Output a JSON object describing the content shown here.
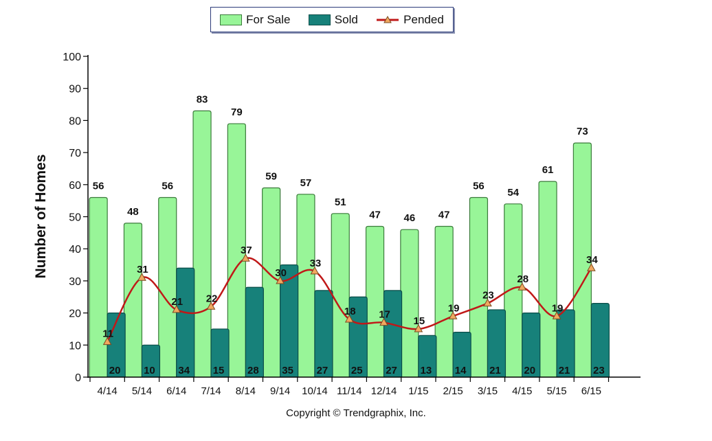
{
  "legend": {
    "for_sale": "For Sale",
    "sold": "Sold",
    "pended": "Pended"
  },
  "colors": {
    "for_sale_fill": "#98f598",
    "for_sale_stroke": "#3a7a3a",
    "sold_fill": "#17817a",
    "sold_stroke": "#0b4d48",
    "pended_line": "#c01818",
    "pended_marker": "#f0a860"
  },
  "copyright": "Copyright © Trendgraphix, Inc.",
  "chart_data": {
    "type": "bar",
    "ylabel": "Number of Homes",
    "xlabel": "",
    "ylim": [
      0,
      100
    ],
    "yticks": [
      0,
      10,
      20,
      30,
      40,
      50,
      60,
      70,
      80,
      90,
      100
    ],
    "grid": false,
    "legend_position": "top-center",
    "categories": [
      "4/14",
      "5/14",
      "6/14",
      "7/14",
      "8/14",
      "9/14",
      "10/14",
      "11/14",
      "12/14",
      "1/15",
      "2/15",
      "3/15",
      "4/15",
      "5/15",
      "6/15"
    ],
    "series": [
      {
        "name": "For Sale",
        "type": "bar",
        "values": [
          56,
          48,
          56,
          83,
          79,
          59,
          57,
          51,
          47,
          46,
          47,
          56,
          54,
          61,
          73
        ]
      },
      {
        "name": "Sold",
        "type": "bar",
        "values": [
          20,
          10,
          34,
          15,
          28,
          35,
          27,
          25,
          27,
          13,
          14,
          21,
          20,
          21,
          23
        ]
      },
      {
        "name": "Pended",
        "type": "line",
        "values": [
          11,
          31,
          21,
          22,
          37,
          30,
          33,
          18,
          17,
          15,
          19,
          23,
          28,
          19,
          34
        ]
      }
    ]
  }
}
